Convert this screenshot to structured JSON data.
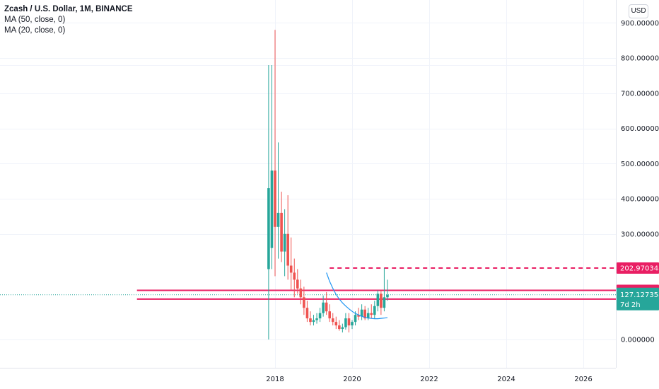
{
  "header": {
    "title": "Zcash / U.S. Dollar, 1M, BINANCE",
    "indicators": [
      "MA (50, close, 0)",
      "MA (20, close, 0)"
    ]
  },
  "currency_label": "USD",
  "colors": {
    "up": "#26a69a",
    "down": "#ef5350",
    "ma_line": "#2196f3",
    "hline": "#e91e63",
    "last_price_tag": "#26a69a",
    "grid": "#f0f3fa"
  },
  "chart_data": {
    "type": "candlestick",
    "x_ticks": [
      "2018",
      "2020",
      "2022",
      "2024",
      "2026"
    ],
    "y_ticks": [
      "900.000000",
      "800.000000",
      "700.000000",
      "600.000000",
      "500.000000",
      "400.000000",
      "300.000000",
      "0.000000"
    ],
    "ylim": [
      -100,
      960
    ],
    "start_month": "2017-11",
    "candles": [
      {
        "o": 200,
        "h": 780,
        "l": 0,
        "c": 430
      },
      {
        "o": 260,
        "h": 780,
        "l": 200,
        "c": 480
      },
      {
        "o": 480,
        "h": 880,
        "l": 180,
        "c": 320
      },
      {
        "o": 320,
        "h": 560,
        "l": 230,
        "c": 360
      },
      {
        "o": 360,
        "h": 420,
        "l": 220,
        "c": 250
      },
      {
        "o": 250,
        "h": 370,
        "l": 180,
        "c": 300
      },
      {
        "o": 300,
        "h": 410,
        "l": 170,
        "c": 210
      },
      {
        "o": 210,
        "h": 290,
        "l": 140,
        "c": 190
      },
      {
        "o": 190,
        "h": 230,
        "l": 120,
        "c": 170
      },
      {
        "o": 170,
        "h": 200,
        "l": 130,
        "c": 145
      },
      {
        "o": 145,
        "h": 170,
        "l": 100,
        "c": 120
      },
      {
        "o": 120,
        "h": 150,
        "l": 70,
        "c": 90
      },
      {
        "o": 90,
        "h": 110,
        "l": 50,
        "c": 60
      },
      {
        "o": 60,
        "h": 80,
        "l": 40,
        "c": 50
      },
      {
        "o": 50,
        "h": 70,
        "l": 40,
        "c": 55
      },
      {
        "o": 55,
        "h": 75,
        "l": 45,
        "c": 60
      },
      {
        "o": 60,
        "h": 90,
        "l": 50,
        "c": 75
      },
      {
        "o": 75,
        "h": 125,
        "l": 65,
        "c": 105
      },
      {
        "o": 105,
        "h": 135,
        "l": 70,
        "c": 80
      },
      {
        "o": 80,
        "h": 100,
        "l": 50,
        "c": 60
      },
      {
        "o": 60,
        "h": 75,
        "l": 40,
        "c": 50
      },
      {
        "o": 50,
        "h": 65,
        "l": 30,
        "c": 40
      },
      {
        "o": 40,
        "h": 55,
        "l": 25,
        "c": 30
      },
      {
        "o": 30,
        "h": 45,
        "l": 20,
        "c": 35
      },
      {
        "o": 35,
        "h": 75,
        "l": 28,
        "c": 60
      },
      {
        "o": 60,
        "h": 75,
        "l": 20,
        "c": 40
      },
      {
        "o": 40,
        "h": 55,
        "l": 30,
        "c": 50
      },
      {
        "o": 50,
        "h": 80,
        "l": 40,
        "c": 70
      },
      {
        "o": 70,
        "h": 90,
        "l": 55,
        "c": 65
      },
      {
        "o": 65,
        "h": 100,
        "l": 55,
        "c": 85
      },
      {
        "o": 85,
        "h": 95,
        "l": 55,
        "c": 60
      },
      {
        "o": 60,
        "h": 90,
        "l": 55,
        "c": 75
      },
      {
        "o": 75,
        "h": 100,
        "l": 60,
        "c": 70
      },
      {
        "o": 70,
        "h": 110,
        "l": 60,
        "c": 95
      },
      {
        "o": 95,
        "h": 140,
        "l": 80,
        "c": 130
      },
      {
        "o": 130,
        "h": 140,
        "l": 70,
        "c": 90
      },
      {
        "o": 90,
        "h": 203,
        "l": 80,
        "c": 120
      },
      {
        "o": 120,
        "h": 170,
        "l": 110,
        "c": 127
      }
    ],
    "ma_series": [
      {
        "name": "MA (20, close, 0)",
        "start_index": 18,
        "values": [
          190,
          165,
          145,
          128,
          115,
          104,
          95,
          87,
          80,
          74,
          70,
          66,
          63,
          61,
          60,
          59,
          59,
          60,
          61,
          62
        ]
      }
    ],
    "hlines": [
      {
        "label": "202.970348",
        "value": 202.970348,
        "style": "dashed",
        "from": "2019-06"
      },
      {
        "label": "139.786391",
        "value": 139.786391,
        "style": "solid",
        "from": "2014-06"
      },
      {
        "label": "114.828332",
        "value": 114.828332,
        "style": "solid",
        "from": "2014-06"
      }
    ],
    "last_price": {
      "label": "127.127358",
      "value": 127.127358,
      "countdown": "7d 2h"
    }
  }
}
